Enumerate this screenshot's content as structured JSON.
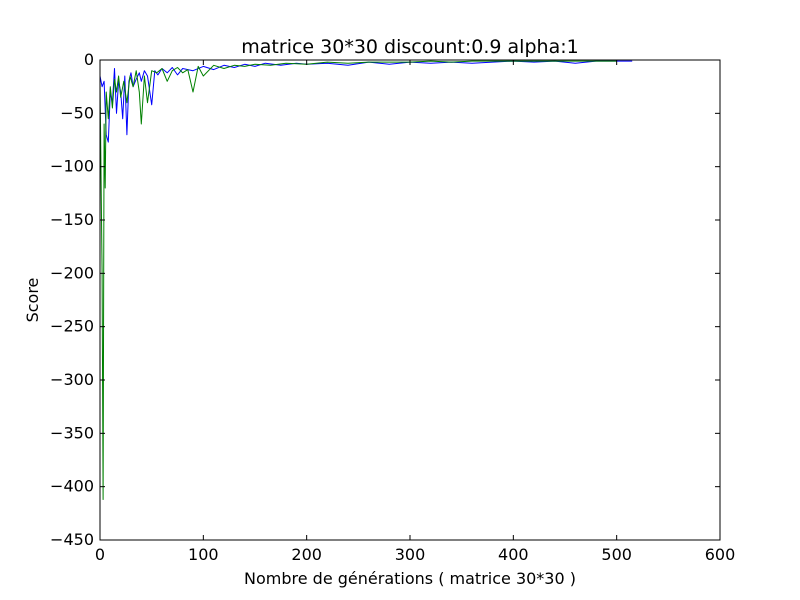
{
  "chart_data": {
    "type": "line",
    "title": "matrice 30*30 discount:0.9 alpha:1",
    "xlabel": "Nombre de générations ( matrice 30*30 )",
    "ylabel": "Score",
    "xlim": [
      0,
      600
    ],
    "ylim": [
      -450,
      0
    ],
    "xticks": [
      0,
      100,
      200,
      300,
      400,
      500,
      600
    ],
    "yticks": [
      0,
      -50,
      -100,
      -150,
      -200,
      -250,
      -300,
      -350,
      -400,
      -450
    ],
    "xtick_labels": [
      "0",
      "100",
      "200",
      "300",
      "400",
      "500",
      "600"
    ],
    "ytick_labels": [
      "0",
      "−50",
      "−100",
      "−150",
      "−200",
      "−250",
      "−300",
      "−350",
      "−400",
      "−450"
    ],
    "grid": false,
    "legend": "none",
    "series": [
      {
        "color": "#0000ff",
        "x": [
          0,
          2,
          4,
          6,
          8,
          10,
          12,
          14,
          16,
          18,
          20,
          22,
          24,
          26,
          28,
          30,
          32,
          35,
          38,
          40,
          43,
          46,
          50,
          53,
          56,
          60,
          65,
          70,
          75,
          80,
          90,
          100,
          110,
          120,
          130,
          140,
          150,
          160,
          175,
          190,
          200,
          220,
          240,
          260,
          280,
          300,
          320,
          340,
          360,
          380,
          400,
          420,
          440,
          460,
          480,
          500,
          515
        ],
        "y": [
          -15,
          -25,
          -20,
          -70,
          -77,
          -30,
          -40,
          -8,
          -50,
          -20,
          -30,
          -55,
          -15,
          -70,
          -20,
          -12,
          -25,
          -18,
          -12,
          -20,
          -10,
          -15,
          -42,
          -10,
          -14,
          -8,
          -12,
          -7,
          -14,
          -8,
          -10,
          -6,
          -9,
          -5,
          -7,
          -4,
          -6,
          -3,
          -5,
          -3,
          -4,
          -3,
          -5,
          -2,
          -4,
          -2,
          -3,
          -2,
          -3,
          -2,
          -1,
          -2,
          -1,
          -3,
          -1,
          -1,
          -1
        ]
      },
      {
        "color": "#008000",
        "x": [
          0,
          2,
          3,
          4,
          5,
          6,
          8,
          10,
          12,
          14,
          16,
          18,
          20,
          23,
          26,
          29,
          32,
          35,
          38,
          40,
          43,
          46,
          50,
          55,
          60,
          65,
          70,
          75,
          80,
          85,
          90,
          95,
          100,
          110,
          120,
          130,
          140,
          150,
          165,
          180,
          200,
          220,
          240,
          260,
          280,
          300,
          320,
          340,
          360,
          380,
          400,
          420,
          440,
          460,
          480,
          500
        ],
        "y": [
          -18,
          -200,
          -412,
          -60,
          -120,
          -30,
          -55,
          -25,
          -45,
          -18,
          -30,
          -15,
          -35,
          -20,
          -40,
          -15,
          -25,
          -10,
          -30,
          -60,
          -15,
          -40,
          -10,
          -12,
          -8,
          -20,
          -10,
          -7,
          -12,
          -9,
          -30,
          -6,
          -15,
          -5,
          -8,
          -5,
          -6,
          -4,
          -5,
          -3,
          -4,
          -2,
          -3,
          -2,
          -2,
          -2,
          -1,
          -2,
          -1,
          -1,
          -1,
          -1,
          -1,
          -1,
          -1,
          -1
        ]
      }
    ]
  }
}
